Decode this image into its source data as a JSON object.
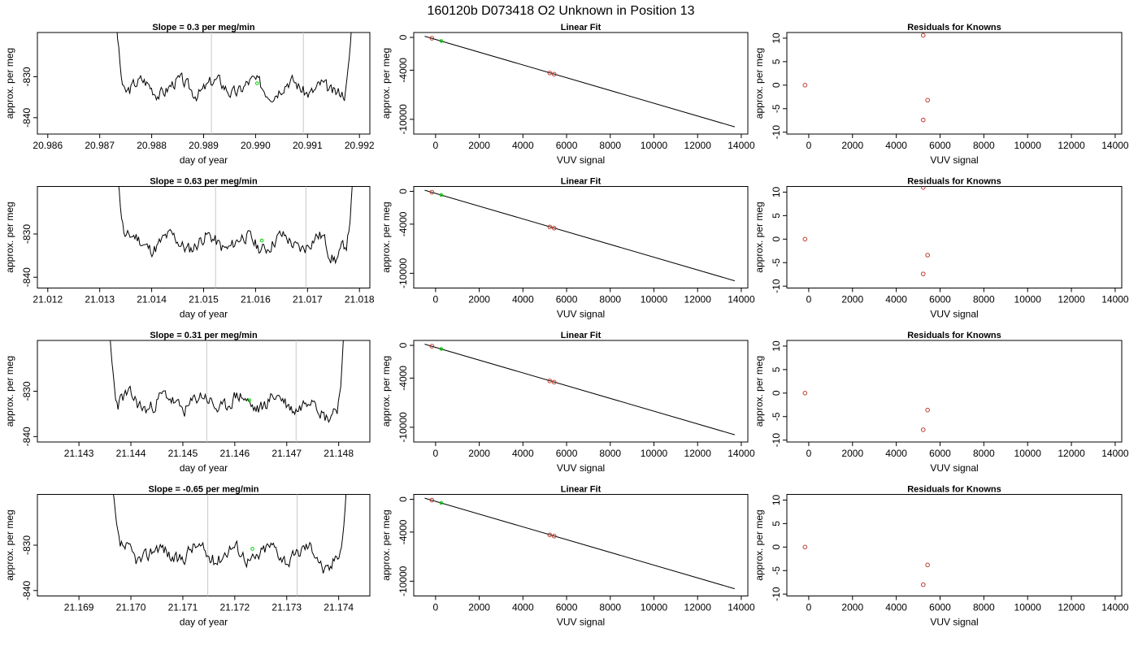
{
  "figure": {
    "title": "160120b     D073418   O2 Unknown in Position  13"
  },
  "chart_data": [
    {
      "type": "line",
      "row": 0,
      "title": "Slope =  0.3  per meg/min",
      "xlabel": "day of year",
      "ylabel": "approx. per meg",
      "xlim": [
        20.9858,
        20.9922
      ],
      "ylim": [
        -844.0,
        -819.2
      ],
      "xticks": [
        20.986,
        20.987,
        20.988,
        20.989,
        20.99,
        20.991,
        20.992
      ],
      "xtick_labels": [
        "20.986",
        "20.987",
        "20.988",
        "20.989",
        "20.990",
        "20.991",
        "20.992"
      ],
      "yticks": [
        -830,
        -840
      ],
      "ytick_labels": [
        "-830",
        "-840"
      ],
      "vlines": [
        20.98915,
        20.99092
      ],
      "x_start": 20.98725,
      "x_end": 20.99192,
      "center": -832.5,
      "seed": 3,
      "marker": {
        "x": 20.99003,
        "y": -831.6
      },
      "series_color": "#000000",
      "marker_color": "#00cc00",
      "vline_color": "#c8c8c8"
    },
    {
      "type": "scatter",
      "row": 0,
      "title": "Linear Fit",
      "xlabel": "VUV signal",
      "ylabel": "approx. per meg",
      "xlim": [
        -1000,
        14300
      ],
      "ylim": [
        -11800,
        600
      ],
      "xticks": [
        0,
        2000,
        4000,
        6000,
        8000,
        10000,
        12000,
        14000
      ],
      "xtick_labels": [
        "0",
        "2000",
        "4000",
        "6000",
        "8000",
        "10000",
        "12000",
        "14000"
      ],
      "yticks": [
        0,
        -4000,
        -10000
      ],
      "ytick_labels": [
        "0",
        "-4000",
        "-10000"
      ],
      "line": {
        "x": [
          -500,
          13700
        ],
        "y": [
          140,
          -10920
        ]
      },
      "points": [
        {
          "x": -170,
          "y": -100
        },
        {
          "x": 5230,
          "y": -4340
        },
        {
          "x": 5430,
          "y": -4490
        }
      ],
      "unknown": {
        "x": 260,
        "y": -440
      },
      "point_color": "#c0392b",
      "unknown_color": "#00cc00"
    },
    {
      "type": "scatter",
      "row": 0,
      "title": "Residuals for Knowns",
      "xlabel": "VUV signal",
      "ylabel": "approx. per meg",
      "xlim": [
        -1000,
        14300
      ],
      "ylim": [
        -10.4,
        11.2
      ],
      "xticks": [
        0,
        2000,
        4000,
        6000,
        8000,
        10000,
        12000,
        14000
      ],
      "xtick_labels": [
        "0",
        "2000",
        "4000",
        "6000",
        "8000",
        "10000",
        "12000",
        "14000"
      ],
      "yticks": [
        10,
        5,
        0,
        -5,
        -10
      ],
      "ytick_labels": [
        "10",
        "5",
        "0",
        "-5",
        "-10"
      ],
      "points": [
        {
          "x": -170,
          "y": 0
        },
        {
          "x": 5230,
          "y": 10.6
        },
        {
          "x": 5430,
          "y": -3.2
        },
        {
          "x": 5230,
          "y": -7.4
        }
      ],
      "point_color": "#c0392b"
    },
    {
      "type": "line",
      "row": 1,
      "title": "Slope =  0.63  per meg/min",
      "xlabel": "day of year",
      "ylabel": "approx. per meg",
      "xlim": [
        21.0118,
        21.0182
      ],
      "ylim": [
        -842.5,
        -819.0
      ],
      "xticks": [
        21.012,
        21.013,
        21.014,
        21.015,
        21.016,
        21.017,
        21.018
      ],
      "xtick_labels": [
        "21.012",
        "21.013",
        "21.014",
        "21.015",
        "21.016",
        "21.017",
        "21.018"
      ],
      "yticks": [
        -830,
        -840
      ],
      "ytick_labels": [
        "-830",
        "-840"
      ],
      "vlines": [
        21.01523,
        21.01697
      ],
      "x_start": 21.01328,
      "x_end": 21.01796,
      "center": -832.0,
      "seed": 11,
      "marker": {
        "x": 21.01612,
        "y": -831.5
      },
      "series_color": "#000000",
      "marker_color": "#00cc00",
      "vline_color": "#c8c8c8"
    },
    {
      "type": "scatter",
      "row": 1,
      "title": "Linear Fit",
      "xlabel": "VUV signal",
      "ylabel": "approx. per meg",
      "xlim": [
        -1000,
        14300
      ],
      "ylim": [
        -11800,
        600
      ],
      "xticks": [
        0,
        2000,
        4000,
        6000,
        8000,
        10000,
        12000,
        14000
      ],
      "xtick_labels": [
        "0",
        "2000",
        "4000",
        "6000",
        "8000",
        "10000",
        "12000",
        "14000"
      ],
      "yticks": [
        0,
        -4000,
        -10000
      ],
      "ytick_labels": [
        "0",
        "-4000",
        "-10000"
      ],
      "line": {
        "x": [
          -500,
          13700
        ],
        "y": [
          140,
          -10920
        ]
      },
      "points": [
        {
          "x": -170,
          "y": -100
        },
        {
          "x": 5230,
          "y": -4340
        },
        {
          "x": 5430,
          "y": -4490
        }
      ],
      "unknown": {
        "x": 260,
        "y": -440
      },
      "point_color": "#c0392b",
      "unknown_color": "#00cc00"
    },
    {
      "type": "scatter",
      "row": 1,
      "title": "Residuals for Knowns",
      "xlabel": "VUV signal",
      "ylabel": "approx. per meg",
      "xlim": [
        -1000,
        14300
      ],
      "ylim": [
        -10.4,
        11.2
      ],
      "xticks": [
        0,
        2000,
        4000,
        6000,
        8000,
        10000,
        12000,
        14000
      ],
      "xtick_labels": [
        "0",
        "2000",
        "4000",
        "6000",
        "8000",
        "10000",
        "12000",
        "14000"
      ],
      "yticks": [
        10,
        5,
        0,
        -5,
        -10
      ],
      "ytick_labels": [
        "10",
        "5",
        "0",
        "-5",
        "-10"
      ],
      "points": [
        {
          "x": -170,
          "y": 0
        },
        {
          "x": 5230,
          "y": 11.0
        },
        {
          "x": 5430,
          "y": -3.4
        },
        {
          "x": 5230,
          "y": -7.4
        }
      ],
      "point_color": "#c0392b"
    },
    {
      "type": "line",
      "row": 2,
      "title": "Slope =  0.31  per meg/min",
      "xlabel": "day of year",
      "ylabel": "approx. per meg",
      "xlim": [
        21.1422,
        21.1486
      ],
      "ylim": [
        -841.2,
        -818.8
      ],
      "xticks": [
        21.143,
        21.144,
        21.145,
        21.146,
        21.147,
        21.148
      ],
      "xtick_labels": [
        "21.143",
        "21.144",
        "21.145",
        "21.146",
        "21.147",
        "21.148"
      ],
      "yticks": [
        -830,
        -840
      ],
      "ytick_labels": [
        "-830",
        "-840"
      ],
      "vlines": [
        21.14546,
        21.14718
      ],
      "x_start": 21.14352,
      "x_end": 21.14818,
      "center": -832.5,
      "seed": 23,
      "marker": {
        "x": 21.14628,
        "y": -832.0
      },
      "series_color": "#000000",
      "marker_color": "#00cc00",
      "vline_color": "#c8c8c8"
    },
    {
      "type": "scatter",
      "row": 2,
      "title": "Linear Fit",
      "xlabel": "VUV signal",
      "ylabel": "approx. per meg",
      "xlim": [
        -1000,
        14300
      ],
      "ylim": [
        -11800,
        600
      ],
      "xticks": [
        0,
        2000,
        4000,
        6000,
        8000,
        10000,
        12000,
        14000
      ],
      "xtick_labels": [
        "0",
        "2000",
        "4000",
        "6000",
        "8000",
        "10000",
        "12000",
        "14000"
      ],
      "yticks": [
        0,
        -4000,
        -10000
      ],
      "ytick_labels": [
        "0",
        "-4000",
        "-10000"
      ],
      "line": {
        "x": [
          -500,
          13700
        ],
        "y": [
          140,
          -10920
        ]
      },
      "points": [
        {
          "x": -170,
          "y": -100
        },
        {
          "x": 5230,
          "y": -4340
        },
        {
          "x": 5430,
          "y": -4490
        }
      ],
      "unknown": {
        "x": 260,
        "y": -440
      },
      "point_color": "#c0392b",
      "unknown_color": "#00cc00"
    },
    {
      "type": "scatter",
      "row": 2,
      "title": "Residuals for Knowns",
      "xlabel": "VUV signal",
      "ylabel": "approx. per meg",
      "xlim": [
        -1000,
        14300
      ],
      "ylim": [
        -10.4,
        11.2
      ],
      "xticks": [
        0,
        2000,
        4000,
        6000,
        8000,
        10000,
        12000,
        14000
      ],
      "xtick_labels": [
        "0",
        "2000",
        "4000",
        "6000",
        "8000",
        "10000",
        "12000",
        "14000"
      ],
      "yticks": [
        10,
        5,
        0,
        -5,
        -10
      ],
      "ytick_labels": [
        "10",
        "5",
        "0",
        "-5",
        "-10"
      ],
      "points": [
        {
          "x": -170,
          "y": 0
        },
        {
          "x": 5430,
          "y": -3.6
        },
        {
          "x": 5230,
          "y": -7.8
        }
      ],
      "point_color": "#c0392b"
    },
    {
      "type": "line",
      "row": 3,
      "title": "Slope =  -0.65  per meg/min",
      "xlabel": "day of year",
      "ylabel": "approx. per meg",
      "xlim": [
        21.1682,
        21.1746
      ],
      "ylim": [
        -841.2,
        -818.8
      ],
      "xticks": [
        21.169,
        21.17,
        21.171,
        21.172,
        21.173,
        21.174
      ],
      "xtick_labels": [
        "21.169",
        "21.170",
        "21.171",
        "21.172",
        "21.173",
        "21.174"
      ],
      "yticks": [
        -830,
        -840
      ],
      "ytick_labels": [
        "-830",
        "-840"
      ],
      "vlines": [
        21.17148,
        21.1732
      ],
      "x_start": 21.16956,
      "x_end": 21.17424,
      "center": -831.8,
      "seed": 37,
      "marker": {
        "x": 21.17234,
        "y": -830.8
      },
      "series_color": "#000000",
      "marker_color": "#00cc00",
      "vline_color": "#c8c8c8"
    },
    {
      "type": "scatter",
      "row": 3,
      "title": "Linear Fit",
      "xlabel": "VUV signal",
      "ylabel": "approx. per meg",
      "xlim": [
        -1000,
        14300
      ],
      "ylim": [
        -11800,
        600
      ],
      "xticks": [
        0,
        2000,
        4000,
        6000,
        8000,
        10000,
        12000,
        14000
      ],
      "xtick_labels": [
        "0",
        "2000",
        "4000",
        "6000",
        "8000",
        "10000",
        "12000",
        "14000"
      ],
      "yticks": [
        0,
        -4000,
        -10000
      ],
      "ytick_labels": [
        "0",
        "-4000",
        "-10000"
      ],
      "line": {
        "x": [
          -500,
          13700
        ],
        "y": [
          140,
          -10920
        ]
      },
      "points": [
        {
          "x": -170,
          "y": -100
        },
        {
          "x": 5230,
          "y": -4340
        },
        {
          "x": 5430,
          "y": -4490
        }
      ],
      "unknown": {
        "x": 260,
        "y": -440
      },
      "point_color": "#c0392b",
      "unknown_color": "#00cc00"
    },
    {
      "type": "scatter",
      "row": 3,
      "title": "Residuals for Knowns",
      "xlabel": "VUV signal",
      "ylabel": "approx. per meg",
      "xlim": [
        -1000,
        14300
      ],
      "ylim": [
        -10.4,
        11.2
      ],
      "xticks": [
        0,
        2000,
        4000,
        6000,
        8000,
        10000,
        12000,
        14000
      ],
      "xtick_labels": [
        "0",
        "2000",
        "4000",
        "6000",
        "8000",
        "10000",
        "12000",
        "14000"
      ],
      "yticks": [
        10,
        5,
        0,
        -5,
        -10
      ],
      "ytick_labels": [
        "10",
        "5",
        "0",
        "-5",
        "-10"
      ],
      "points": [
        {
          "x": -170,
          "y": 0
        },
        {
          "x": 5430,
          "y": -3.8
        },
        {
          "x": 5230,
          "y": -8.0
        }
      ],
      "point_color": "#c0392b"
    }
  ]
}
